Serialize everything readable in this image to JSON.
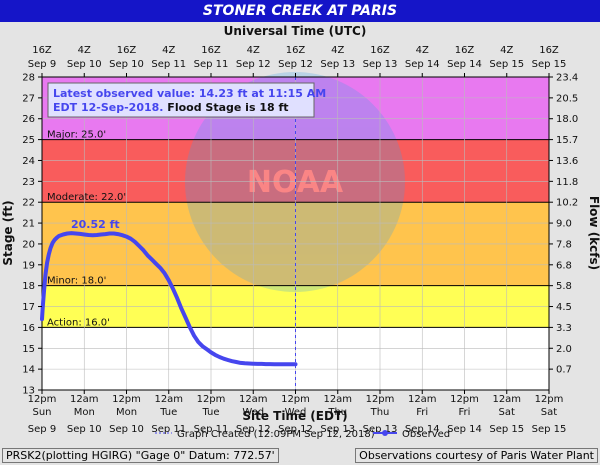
{
  "chart_data": {
    "type": "line",
    "title": "STONER CREEK AT PARIS",
    "top_axis_title": "Universal Time (UTC)",
    "bottom_axis_title": "Site Time (EDT)",
    "ylabel": "Stage (ft)",
    "ylabel_right": "Flow (kcfs)",
    "ylim": [
      13,
      28
    ],
    "y_ticks": [
      13,
      14,
      15,
      16,
      17,
      18,
      19,
      20,
      21,
      22,
      23,
      24,
      25,
      26,
      27,
      28
    ],
    "y_right_ticks": [
      "0.7",
      "2.0",
      "3.3",
      "4.5",
      "5.8",
      "6.8",
      "7.8",
      "9.0",
      "10.2",
      "11.8",
      "13.6",
      "15.7",
      "18.0",
      "20.5",
      "23.4"
    ],
    "x_ticks_bottom": [
      {
        "l1": "12pm",
        "l2": "Sun",
        "l3": "Sep 9"
      },
      {
        "l1": "12am",
        "l2": "Mon",
        "l3": "Sep 10"
      },
      {
        "l1": "12pm",
        "l2": "Mon",
        "l3": "Sep 10"
      },
      {
        "l1": "12am",
        "l2": "Tue",
        "l3": "Sep 11"
      },
      {
        "l1": "12pm",
        "l2": "Tue",
        "l3": "Sep 11"
      },
      {
        "l1": "12am",
        "l2": "Wed",
        "l3": "Sep 12"
      },
      {
        "l1": "12pm",
        "l2": "Wed",
        "l3": "Sep 12"
      },
      {
        "l1": "12am",
        "l2": "Thu",
        "l3": "Sep 13"
      },
      {
        "l1": "12pm",
        "l2": "Thu",
        "l3": "Sep 13"
      },
      {
        "l1": "12am",
        "l2": "Fri",
        "l3": "Sep 14"
      },
      {
        "l1": "12pm",
        "l2": "Fri",
        "l3": "Sep 14"
      },
      {
        "l1": "12am",
        "l2": "Sat",
        "l3": "Sep 15"
      },
      {
        "l1": "12pm",
        "l2": "Sat",
        "l3": "Sep 15"
      }
    ],
    "x_ticks_top": [
      {
        "l1": "16Z",
        "l2": "Sep 9"
      },
      {
        "l1": "4Z",
        "l2": "Sep 10"
      },
      {
        "l1": "16Z",
        "l2": "Sep 10"
      },
      {
        "l1": "4Z",
        "l2": "Sep 11"
      },
      {
        "l1": "16Z",
        "l2": "Sep 11"
      },
      {
        "l1": "4Z",
        "l2": "Sep 12"
      },
      {
        "l1": "16Z",
        "l2": "Sep 12"
      },
      {
        "l1": "4Z",
        "l2": "Sep 13"
      },
      {
        "l1": "16Z",
        "l2": "Sep 13"
      },
      {
        "l1": "4Z",
        "l2": "Sep 14"
      },
      {
        "l1": "16Z",
        "l2": "Sep 14"
      },
      {
        "l1": "4Z",
        "l2": "Sep 15"
      },
      {
        "l1": "16Z",
        "l2": "Sep 15"
      }
    ],
    "flood_bands": [
      {
        "name": "action",
        "from": 16,
        "to": 18,
        "color": "#ffff55"
      },
      {
        "name": "minor",
        "from": 18,
        "to": 20,
        "color": "#ffc44d"
      },
      {
        "name": "moderate",
        "from": 20,
        "to": 22,
        "color": "#ffc44d"
      },
      {
        "name": "moderate-upper",
        "from": 22,
        "to": 25,
        "color": "#f95c5c"
      },
      {
        "name": "major",
        "from": 25,
        "to": 28,
        "color": "#e879f0"
      }
    ],
    "threshold_labels": [
      {
        "text": "Action: 16.0'",
        "y": 16
      },
      {
        "text": "Minor: 18.0'",
        "y": 18
      },
      {
        "text": "Moderate: 22.0'",
        "y": 22
      },
      {
        "text": "Major: 25.0'",
        "y": 25
      }
    ],
    "peak_label": {
      "text": "20.52 ft",
      "x": 0.45,
      "y": 20.52
    },
    "series": [
      {
        "name": "Observed",
        "color": "#4646ee",
        "x": [
          0,
          0.02,
          0.05,
          0.08,
          0.12,
          0.16,
          0.2,
          0.25,
          0.3,
          0.35,
          0.4,
          0.5,
          0.6,
          0.7,
          0.8,
          0.9,
          1.0,
          1.1,
          1.2,
          1.3,
          1.4,
          1.5,
          1.6,
          1.7,
          1.8,
          1.9,
          2.0,
          2.1,
          2.2,
          2.3,
          2.4,
          2.5,
          2.6,
          2.7,
          2.8,
          2.9,
          3.0,
          3.1,
          3.2,
          3.3,
          3.4,
          3.5,
          3.6,
          3.7,
          3.8,
          3.9,
          4.0,
          4.1,
          4.2,
          4.3,
          4.4,
          4.5,
          4.6,
          4.7,
          4.8,
          4.9,
          5.0,
          5.1,
          5.2,
          5.3,
          5.4,
          5.5,
          5.6,
          5.8,
          6.0
        ],
        "y": [
          16.4,
          17.0,
          17.8,
          18.5,
          19.1,
          19.5,
          19.8,
          20.05,
          20.2,
          20.3,
          20.38,
          20.45,
          20.5,
          20.52,
          20.5,
          20.48,
          20.45,
          20.43,
          20.42,
          20.43,
          20.45,
          20.47,
          20.5,
          20.5,
          20.47,
          20.42,
          20.35,
          20.25,
          20.1,
          19.9,
          19.7,
          19.45,
          19.25,
          19.05,
          18.85,
          18.6,
          18.25,
          17.85,
          17.4,
          16.9,
          16.45,
          16.0,
          15.6,
          15.3,
          15.1,
          14.95,
          14.8,
          14.68,
          14.58,
          14.5,
          14.44,
          14.38,
          14.34,
          14.3,
          14.28,
          14.27,
          14.26,
          14.25,
          14.25,
          14.24,
          14.24,
          14.23,
          14.23,
          14.23,
          14.23
        ]
      }
    ],
    "latest_box": {
      "line1": "Latest observed value: 14.23 ft at 11:15 AM",
      "line2a": "EDT 12-Sep-2018.",
      "line2b": " Flood Stage is 18 ft"
    },
    "legend": {
      "created": "Graph Created (12:09PM Sep 12, 2018)",
      "observed": "Observed"
    },
    "watermark_text": "NOAA"
  },
  "footer": {
    "left": "PRSK2(plotting HGIRG) \"Gage 0\" Datum: 772.57'",
    "right": "Observations courtesy of Paris Water Plant"
  }
}
